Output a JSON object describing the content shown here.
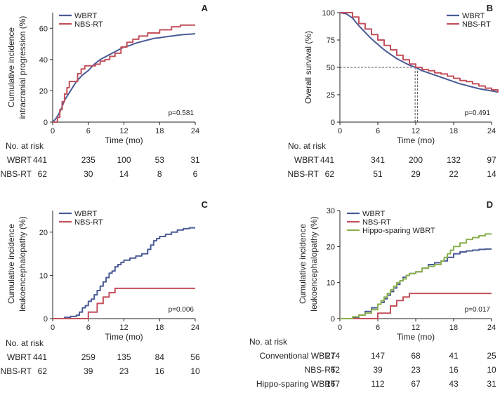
{
  "colors": {
    "wbrt": "#4a5a95",
    "nbs": "#c4505c",
    "hippo": "#8bb04f"
  },
  "chart_data": [
    {
      "id": "A",
      "type": "line",
      "panel_label": "A",
      "ylabel_lines": [
        "Cumulative incidence",
        "intracranial progression (%)"
      ],
      "xlabel": "Time (mo)",
      "ylim": [
        0,
        70
      ],
      "yticks": [
        "0",
        "20",
        "40",
        "60"
      ],
      "xlim": [
        0,
        24
      ],
      "xticks": [
        "0",
        "6",
        "12",
        "18",
        "24"
      ],
      "pvalue": "p=0.581",
      "legend": [
        "WBRT",
        "NBS-RT"
      ],
      "series": [
        {
          "name": "WBRT",
          "color": "wbrt",
          "x": [
            0,
            0.5,
            1,
            1.5,
            2,
            2.5,
            3,
            3.5,
            4,
            4.5,
            5,
            6,
            7,
            8,
            9,
            10,
            11,
            12,
            13,
            14,
            15,
            16,
            17,
            18,
            19,
            20,
            21,
            22,
            23,
            24
          ],
          "y": [
            0,
            2,
            5,
            9,
            14,
            17,
            20,
            23,
            26,
            28,
            30,
            33,
            37,
            40,
            42,
            44,
            46,
            48,
            49,
            50.5,
            51.5,
            52.5,
            53.5,
            54,
            54.5,
            55,
            55.5,
            56,
            56.2,
            56.5
          ]
        },
        {
          "name": "NBS-RT",
          "color": "nbs",
          "step": true,
          "x": [
            0,
            0.8,
            1.2,
            1.6,
            2,
            2.4,
            2.8,
            3.6,
            4.2,
            4.8,
            5.4,
            6.2,
            7.2,
            8,
            8.8,
            9.6,
            10.5,
            11.5,
            12.5,
            13.5,
            14.5,
            16,
            18,
            20,
            21.5,
            24
          ],
          "y": [
            0,
            3,
            8,
            13,
            18,
            22,
            26,
            26,
            31,
            34,
            36,
            36,
            37,
            39,
            40,
            42,
            44,
            48,
            51,
            53,
            55,
            57,
            59,
            61,
            62,
            62
          ]
        }
      ],
      "risk_table": {
        "heading": "No. at risk",
        "rows": [
          {
            "label": "WBRT",
            "values": [
              "441",
              "235",
              "100",
              "53",
              "31"
            ]
          },
          {
            "label": "NBS-RT",
            "values": [
              "62",
              "30",
              "14",
              "8",
              "6"
            ]
          }
        ]
      }
    },
    {
      "id": "B",
      "type": "line",
      "panel_label": "B",
      "ylabel_lines": [
        "Overall survival (%)"
      ],
      "xlabel": "Time (mo)",
      "ylim": [
        0,
        100
      ],
      "yticks": [
        "0",
        "25",
        "50",
        "75",
        "100"
      ],
      "xlim": [
        0,
        24
      ],
      "xticks": [
        "0",
        "6",
        "12",
        "18",
        "24"
      ],
      "pvalue": "p=0.491",
      "legend": [
        "WBRT",
        "NBS-RT"
      ],
      "median_line": {
        "y": 50,
        "x": [
          11.9,
          12.3
        ]
      },
      "series": [
        {
          "name": "WBRT",
          "color": "wbrt",
          "x": [
            0,
            1,
            2,
            3,
            4,
            5,
            6,
            7,
            8,
            9,
            10,
            11,
            12,
            13,
            14,
            15,
            16,
            17,
            18,
            19,
            20,
            21,
            22,
            23,
            24,
            25
          ],
          "y": [
            100,
            99,
            95,
            88,
            82,
            76,
            71,
            66,
            62,
            58,
            55,
            52,
            50,
            47,
            45,
            43,
            41,
            39,
            37,
            35,
            33.5,
            32,
            30.5,
            29.5,
            28.5,
            27.5
          ]
        },
        {
          "name": "NBS-RT",
          "color": "nbs",
          "step": true,
          "x": [
            0,
            1,
            2,
            3,
            4,
            5,
            6,
            7,
            8,
            9,
            10,
            11,
            12,
            13,
            14,
            15,
            16,
            17,
            18,
            19,
            20,
            21,
            22,
            23,
            24,
            25
          ],
          "y": [
            100,
            100,
            96,
            90,
            85,
            80,
            75,
            70,
            66,
            61,
            57,
            53,
            50,
            48,
            47,
            45,
            44,
            42,
            40,
            38,
            37,
            35,
            33,
            31,
            29.5,
            27
          ]
        }
      ],
      "risk_table": {
        "heading": "No. at risk",
        "rows": [
          {
            "label": "WBRT",
            "values": [
              "441",
              "341",
              "200",
              "132",
              "97"
            ]
          },
          {
            "label": "NBS-RT",
            "values": [
              "62",
              "51",
              "29",
              "22",
              "14"
            ]
          }
        ]
      }
    },
    {
      "id": "C",
      "type": "line",
      "panel_label": "C",
      "ylabel_lines": [
        "Cumulative incidence",
        "leukoencephalopathy (%)"
      ],
      "xlabel": "Time (mo)",
      "ylim": [
        0,
        25
      ],
      "yticks": [
        "0",
        "10",
        "20"
      ],
      "xlim": [
        0,
        24
      ],
      "xticks": [
        "0",
        "6",
        "12",
        "18",
        "24"
      ],
      "pvalue": "p=0.006",
      "legend": [
        "WBRT",
        "NBS-RT"
      ],
      "series": [
        {
          "name": "WBRT",
          "color": "wbrt",
          "step": true,
          "x": [
            0,
            2,
            3,
            4,
            4.5,
            5,
            5.5,
            6,
            6.5,
            7,
            7.5,
            8,
            8.5,
            9,
            9.5,
            10,
            10.5,
            11,
            11.5,
            12,
            13,
            14,
            15,
            16,
            16.5,
            17,
            17.5,
            18,
            19,
            20,
            21,
            22,
            23,
            24
          ],
          "y": [
            0,
            0.3,
            0.5,
            0.8,
            1.5,
            2.5,
            3,
            4,
            4.5,
            5.5,
            6.5,
            7.5,
            8.5,
            9.5,
            10.5,
            11,
            12,
            12.5,
            13,
            13.5,
            14,
            14.5,
            15,
            16,
            17,
            18,
            18.5,
            19,
            19.5,
            20,
            20.5,
            20.8,
            21,
            21
          ]
        },
        {
          "name": "NBS-RT",
          "color": "nbs",
          "step": true,
          "x": [
            0,
            6,
            7.5,
            8.5,
            9.5,
            10.5,
            24
          ],
          "y": [
            0,
            1.5,
            3.5,
            5,
            6,
            7,
            7
          ]
        }
      ],
      "risk_table": {
        "heading": "No. at risk",
        "rows": [
          {
            "label": "WBRT",
            "values": [
              "441",
              "259",
              "135",
              "84",
              "56"
            ]
          },
          {
            "label": "NBS-RT",
            "values": [
              "62",
              "39",
              "23",
              "16",
              "10"
            ]
          }
        ]
      }
    },
    {
      "id": "D",
      "type": "line",
      "panel_label": "D",
      "ylabel_lines": [
        "Cumulative incidence",
        "leukoencephalopathy (%)"
      ],
      "xlabel": "Time (mo)",
      "ylim": [
        0,
        30
      ],
      "yticks": [
        "0",
        "10",
        "20",
        "30"
      ],
      "xlim": [
        0,
        24
      ],
      "xticks": [
        "0",
        "6",
        "12",
        "18",
        "24"
      ],
      "pvalue": "p=0.017",
      "legend": [
        "WBRT",
        "NBS-RT",
        "Hippo-sparing WBRT"
      ],
      "series": [
        {
          "name": "WBRT",
          "color": "wbrt",
          "step": true,
          "x": [
            0,
            2,
            3,
            4,
            5,
            6,
            6.5,
            7,
            7.5,
            8,
            8.5,
            9,
            9.5,
            10,
            10.5,
            11,
            12,
            13,
            14,
            15,
            16,
            17,
            18,
            19,
            20,
            21,
            22,
            23,
            24
          ],
          "y": [
            0,
            0.3,
            1,
            2,
            3,
            4,
            4.5,
            5.5,
            6.5,
            7.5,
            8.5,
            9.5,
            10.5,
            11.5,
            12,
            12.5,
            13,
            14,
            15,
            15.5,
            16,
            17,
            18,
            18.5,
            18.8,
            19,
            19.2,
            19.3,
            19.3
          ]
        },
        {
          "name": "NBS-RT",
          "color": "nbs",
          "step": true,
          "x": [
            0,
            6,
            8,
            9,
            10,
            11,
            24
          ],
          "y": [
            0,
            1.5,
            3.5,
            5,
            6,
            7,
            7
          ]
        },
        {
          "name": "Hippo-sparing WBRT",
          "color": "hippo",
          "step": true,
          "x": [
            0,
            2,
            3,
            4,
            5,
            6,
            6.5,
            7,
            7.5,
            8,
            8.5,
            9,
            9.5,
            10,
            10.5,
            11,
            12,
            13,
            14,
            15,
            16,
            16.5,
            17,
            17.5,
            18,
            19,
            20,
            21,
            22,
            23,
            24
          ],
          "y": [
            0,
            0.5,
            1,
            1.5,
            2.5,
            4,
            5,
            6,
            7,
            8,
            9,
            10,
            10.5,
            11,
            12,
            12.5,
            13,
            14,
            14.5,
            15,
            16,
            17,
            18,
            19,
            20,
            21,
            22,
            22.5,
            23,
            23.5,
            23.5
          ]
        }
      ],
      "risk_table": {
        "heading": "No. at risk",
        "rows": [
          {
            "label": "Conventional WBRT",
            "values": [
              "274",
              "147",
              "68",
              "41",
              "25"
            ]
          },
          {
            "label": "NBS-RT",
            "values": [
              "62",
              "39",
              "23",
              "16",
              "10"
            ]
          },
          {
            "label": "Hippo-sparing WBRT",
            "values": [
              "167",
              "112",
              "67",
              "43",
              "31"
            ]
          }
        ]
      }
    }
  ]
}
